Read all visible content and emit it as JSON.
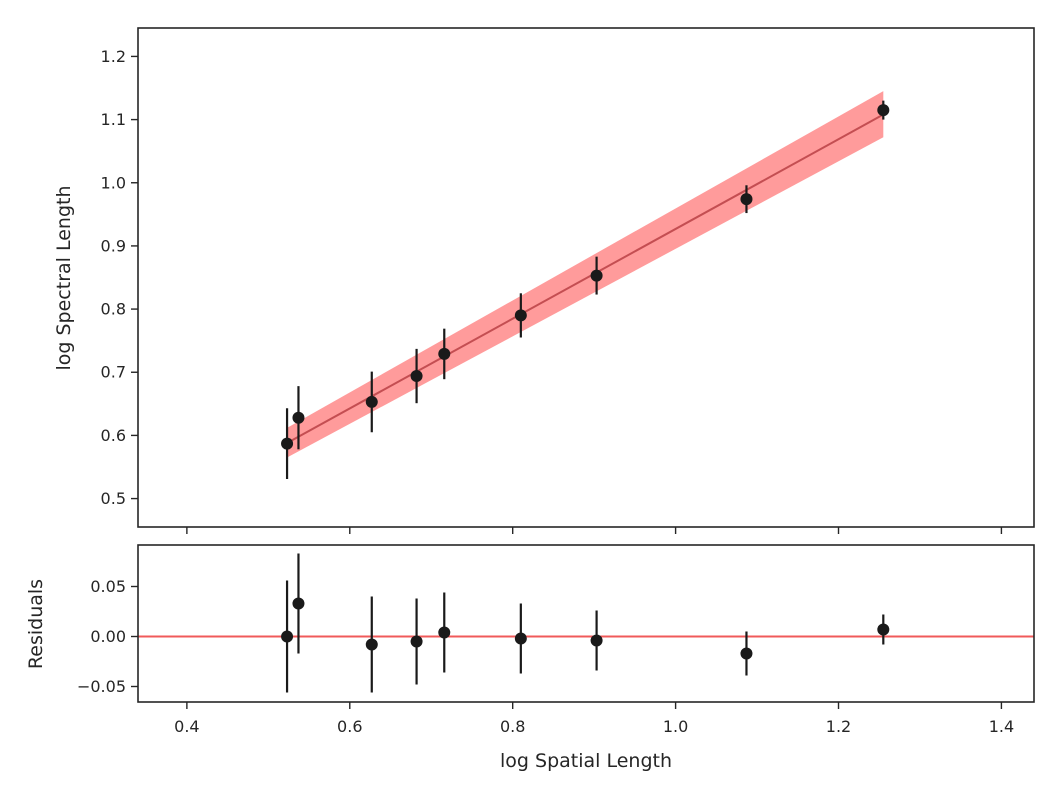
{
  "chart_data": [
    {
      "type": "scatter",
      "title": "",
      "xlabel": "",
      "ylabel": "log Spectral Length",
      "xlim": [
        0.34,
        1.44
      ],
      "ylim": [
        0.455,
        1.245
      ],
      "yticks": [
        0.5,
        0.6,
        0.7,
        0.8,
        0.9,
        1.0,
        1.1,
        1.2
      ],
      "ytick_labels": [
        "0.5",
        "0.6",
        "0.7",
        "0.8",
        "0.9",
        "1.0",
        "1.1",
        "1.2"
      ],
      "xticks": [
        0.4,
        0.6,
        0.8,
        1.0,
        1.2,
        1.4
      ],
      "grid": false,
      "fit": {
        "x": [
          0.523,
          1.255
        ],
        "y": [
          0.588,
          1.108
        ],
        "band_lower": [
          0.565,
          1.072
        ],
        "band_upper": [
          0.612,
          1.145
        ],
        "line_color": "#c44e52",
        "band_color": "#ff9696"
      },
      "points": {
        "x": [
          0.523,
          0.537,
          0.627,
          0.682,
          0.716,
          0.81,
          0.903,
          1.087,
          1.255
        ],
        "y": [
          0.587,
          0.628,
          0.653,
          0.694,
          0.729,
          0.79,
          0.853,
          0.974,
          1.115
        ],
        "yerr": [
          0.056,
          0.05,
          0.048,
          0.043,
          0.04,
          0.035,
          0.03,
          0.022,
          0.015
        ],
        "color": "#1a1a1a"
      }
    },
    {
      "type": "scatter",
      "title": "",
      "xlabel": "log Spatial Length",
      "ylabel": "Residuals",
      "xlim": [
        0.34,
        1.44
      ],
      "ylim": [
        -0.0655,
        0.0915
      ],
      "yticks": [
        0.05,
        0.0,
        -0.05
      ],
      "ytick_labels": [
        "0.05",
        "0.00",
        "−0.05"
      ],
      "xticks": [
        0.4,
        0.6,
        0.8,
        1.0,
        1.2,
        1.4
      ],
      "xtick_labels": [
        "0.4",
        "0.6",
        "0.8",
        "1.0",
        "1.2",
        "1.4"
      ],
      "grid": false,
      "reference_line": {
        "y": 0.0,
        "color": "#f05a5a"
      },
      "points": {
        "x": [
          0.523,
          0.537,
          0.627,
          0.682,
          0.716,
          0.81,
          0.903,
          1.087,
          1.255
        ],
        "y": [
          0.0,
          0.033,
          -0.008,
          -0.005,
          0.004,
          -0.002,
          -0.004,
          -0.017,
          0.007
        ],
        "yerr": [
          0.056,
          0.05,
          0.048,
          0.043,
          0.04,
          0.035,
          0.03,
          0.022,
          0.015
        ],
        "color": "#1a1a1a"
      }
    }
  ]
}
